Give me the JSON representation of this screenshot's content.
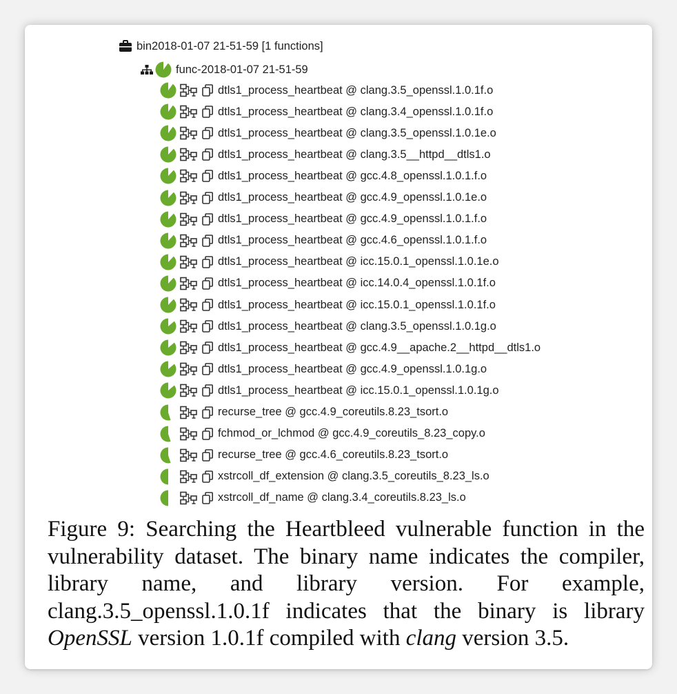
{
  "tree": {
    "root": {
      "label": "bin2018-01-07 21-51-59 [1 functions]",
      "icon": "briefcase-icon"
    },
    "func": {
      "label": "func-2018-01-07 21-51-59",
      "icons": [
        "hierarchy-icon",
        "pie-score-icon"
      ]
    },
    "items": [
      {
        "label": "dtls1_process_heartbeat @ clang.3.5_openssl.1.0.1f.o",
        "score": 0.9
      },
      {
        "label": "dtls1_process_heartbeat @ clang.3.4_openssl.1.0.1f.o",
        "score": 0.9
      },
      {
        "label": "dtls1_process_heartbeat @ clang.3.5_openssl.1.0.1e.o",
        "score": 0.9
      },
      {
        "label": "dtls1_process_heartbeat @ clang.3.5__httpd__dtls1.o",
        "score": 0.88
      },
      {
        "label": "dtls1_process_heartbeat @ gcc.4.8_openssl.1.0.1.f.o",
        "score": 0.88
      },
      {
        "label": "dtls1_process_heartbeat @ gcc.4.9_openssl.1.0.1e.o",
        "score": 0.88
      },
      {
        "label": "dtls1_process_heartbeat @ gcc.4.9_openssl.1.0.1.f.o",
        "score": 0.88
      },
      {
        "label": "dtls1_process_heartbeat @ gcc.4.6_openssl.1.0.1.f.o",
        "score": 0.88
      },
      {
        "label": "dtls1_process_heartbeat @ icc.15.0.1_openssl.1.0.1e.o",
        "score": 0.88
      },
      {
        "label": "dtls1_process_heartbeat @ icc.14.0.4_openssl.1.0.1f.o",
        "score": 0.88
      },
      {
        "label": "dtls1_process_heartbeat @ icc.15.0.1_openssl.1.0.1f.o",
        "score": 0.88
      },
      {
        "label": "dtls1_process_heartbeat @ clang.3.5_openssl.1.0.1g.o",
        "score": 0.86
      },
      {
        "label": "dtls1_process_heartbeat @ gcc.4.9__apache.2__httpd__dtls1.o",
        "score": 0.86
      },
      {
        "label": "dtls1_process_heartbeat @ gcc.4.9_openssl.1.0.1g.o",
        "score": 0.86
      },
      {
        "label": "dtls1_process_heartbeat @ icc.15.0.1_openssl.1.0.1g.o",
        "score": 0.86
      },
      {
        "label": "recurse_tree @ gcc.4.9_coreutils.8.23_tsort.o",
        "score": 0.55
      },
      {
        "label": "fchmod_or_lchmod @ gcc.4.9_coreutils_8.23_copy.o",
        "score": 0.55
      },
      {
        "label": "recurse_tree @ gcc.4.6_coreutils.8.23_tsort.o",
        "score": 0.55
      },
      {
        "label": "xstrcoll_df_extension @ clang.3.5_coreutils_8.23_ls.o",
        "score": 0.5
      },
      {
        "label": "xstrcoll_df_name @ clang.3.4_coreutils.8.23_ls.o",
        "score": 0.5
      }
    ],
    "item_icons": [
      "flow-graph-icon",
      "copy-icon"
    ]
  },
  "caption": {
    "part1": "Figure 9: Searching the Heartbleed vulnerable function in the vulnerability dataset. The binary name indicates the compiler, library name, and library version. For example, clang.3.5_openssl.1.0.1f indicates that the binary is library ",
    "em1": "OpenSSL",
    "part2": " version 1.0.1f compiled with ",
    "em2": "clang",
    "part3": " version 3.5."
  },
  "colors": {
    "pie": "#6aab2e",
    "text": "#222222",
    "icon": "#333333"
  }
}
